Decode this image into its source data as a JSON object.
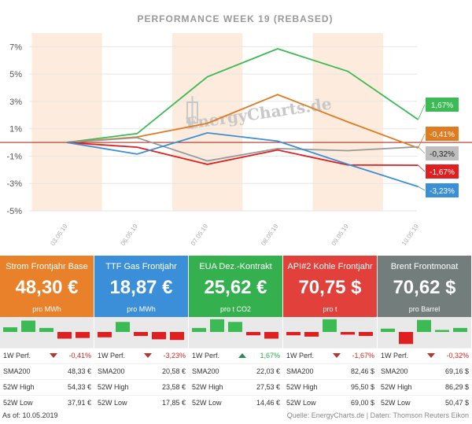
{
  "chart_data": {
    "type": "line",
    "title": "PERFORMANCE   WEEK 19 (REBASED)",
    "x": [
      "03.05.19",
      "06.05.19",
      "07.05.19",
      "08.05.19",
      "09.05.19",
      "10.05.19"
    ],
    "ylim": [
      -5,
      8
    ],
    "y_ticks": [
      "7%",
      "5%",
      "3%",
      "1%",
      "-1%",
      "-3%",
      "-5%"
    ],
    "y_tick_values": [
      7,
      5,
      3,
      1,
      -1,
      -3,
      -5
    ],
    "grid": true,
    "series": [
      {
        "name": "EUA Dez.-Kontrakt",
        "color": "#3cba54",
        "values": [
          0,
          0.65,
          4.8,
          6.85,
          5.2,
          1.67
        ],
        "last_label": "1,67%"
      },
      {
        "name": "Strom Frontjahr Base",
        "color": "#e07b1f",
        "values": [
          0,
          0.4,
          1.4,
          3.5,
          1.5,
          -0.41
        ],
        "last_label": "-0,41%"
      },
      {
        "name": "Brent Frontmonat",
        "color": "#999999",
        "values": [
          0,
          0.35,
          -1.35,
          -0.45,
          -0.6,
          -0.32
        ],
        "last_label": "-0,32%"
      },
      {
        "name": "API#2 Kohle Frontjahr",
        "color": "#e02020",
        "values": [
          0,
          -0.35,
          -1.6,
          -0.55,
          -1.65,
          -1.67
        ],
        "last_label": "-1,67%"
      },
      {
        "name": "TTF Gas Frontjahr",
        "color": "#3a8fd6",
        "values": [
          0,
          -0.85,
          0.7,
          0.1,
          -1.6,
          -3.23
        ],
        "last_label": "-3,23%"
      }
    ]
  },
  "watermark": "EnergyCharts.de",
  "cards": [
    {
      "title": "Strom Frontjahr Base",
      "value": "48,30 €",
      "unit": "pro MWh",
      "color": "#e8812a",
      "spark": [
        0.35,
        0.85,
        0.3,
        -0.5,
        -0.45
      ],
      "perf_label": "1W Perf.",
      "perf_value": "-0,41%",
      "perf_dir": "down",
      "sma_label": "SMA200",
      "sma_value": "48,33 €",
      "high_label": "52W High",
      "high_value": "54,33 €",
      "low_label": "52W Low",
      "low_value": "37,91 €"
    },
    {
      "title": "TTF Gas Frontjahr",
      "value": "18,87 €",
      "unit": "pro MWh",
      "color": "#3b8fd8",
      "spark": [
        -0.4,
        0.75,
        -0.3,
        -0.55,
        -0.6
      ],
      "perf_label": "1W Perf.",
      "perf_value": "-3,23%",
      "perf_dir": "down",
      "sma_label": "SMA200",
      "sma_value": "20,58 €",
      "high_label": "52W High",
      "high_value": "23,58 €",
      "low_label": "52W Low",
      "low_value": "17,85 €"
    },
    {
      "title": "EUA Dez.-Kontrakt",
      "value": "25,62 €",
      "unit": "pro t CO2",
      "color": "#35b04f",
      "spark": [
        0.3,
        0.95,
        0.75,
        -0.25,
        -0.5
      ],
      "perf_label": "1W Perf.",
      "perf_value": "1,67%",
      "perf_dir": "up",
      "sma_label": "SMA200",
      "sma_value": "22,03 €",
      "high_label": "52W High",
      "high_value": "27,53 €",
      "low_label": "52W Low",
      "low_value": "14,46 €"
    },
    {
      "title": "API#2 Kohle Frontjahr",
      "value": "70,75 $",
      "unit": "pro t",
      "color": "#e2403a",
      "spark": [
        -0.25,
        -0.35,
        0.95,
        -0.2,
        -0.3
      ],
      "perf_label": "1W Perf.",
      "perf_value": "-1,67%",
      "perf_dir": "down",
      "sma_label": "SMA200",
      "sma_value": "82,46 $",
      "high_label": "52W High",
      "high_value": "95,50 $",
      "low_label": "52W Low",
      "low_value": "69,00 $"
    },
    {
      "title": "Brent Frontmonat",
      "value": "70,62 $",
      "unit": "pro Barrel",
      "color": "#737d7c",
      "spark": [
        0.25,
        -0.9,
        0.9,
        0.15,
        0.3
      ],
      "perf_label": "1W Perf.",
      "perf_value": "-0,32%",
      "perf_dir": "down",
      "sma_label": "SMA200",
      "sma_value": "69,16 $",
      "high_label": "52W High",
      "high_value": "86,29 $",
      "low_label": "52W Low",
      "low_value": "50,47 $"
    }
  ],
  "footer": {
    "as_of": "As of: 10.05.2019",
    "source": "Quelle: EnergyCharts.de | Daten: Thomson Reuters Eikon"
  },
  "colors": {
    "pos": "#3cba54",
    "neg": "#e02020",
    "grid": "#e6e6e6",
    "band": "#fdebdd"
  }
}
